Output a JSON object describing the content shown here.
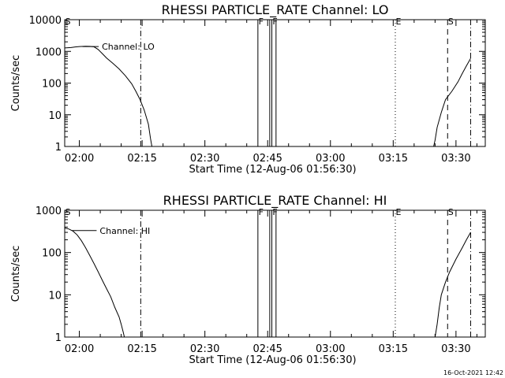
{
  "chart_data": [
    {
      "type": "line",
      "title": "RHESSI PARTICLE_RATE Channel: LO",
      "xlabel": "Start Time (12-Aug-06 01:56:30)",
      "ylabel": "Counts/sec",
      "xlim": [
        "01:56:30",
        "03:37:00"
      ],
      "ylim": [
        1,
        10000
      ],
      "yscale": "log",
      "x_ticks": [
        "02:00",
        "02:15",
        "02:30",
        "02:45",
        "03:00",
        "03:15",
        "03:30"
      ],
      "y_ticks": [
        "1",
        "10",
        "100",
        "1000",
        "10000"
      ],
      "legend_label": "Channel: LO",
      "series": [
        {
          "name": "Channel: LO",
          "segments": [
            [
              [
                "01:56:30",
                1280
              ],
              [
                "01:58:00",
                1320
              ],
              [
                "01:59:00",
                1380
              ],
              [
                "02:00:00",
                1420
              ],
              [
                "02:01:30",
                1450
              ],
              [
                "02:02:30",
                1440
              ],
              [
                "02:03:30",
                1400
              ],
              [
                "02:04:30",
                1150
              ],
              [
                "02:05:30",
                850
              ],
              [
                "02:06:30",
                620
              ],
              [
                "02:08:00",
                420
              ],
              [
                "02:09:30",
                280
              ],
              [
                "02:11:00",
                170
              ],
              [
                "02:12:30",
                95
              ],
              [
                "02:13:30",
                55
              ],
              [
                "02:14:30",
                30
              ],
              [
                "02:15:30",
                14
              ],
              [
                "02:16:30",
                5
              ],
              [
                "02:17:00",
                1.8
              ],
              [
                "02:17:20",
                1
              ]
            ],
            [
              [
                "03:24:40",
                1
              ],
              [
                "03:25:00",
                1.6
              ],
              [
                "03:25:30",
                4
              ],
              [
                "03:26:30",
                12
              ],
              [
                "03:27:30",
                30
              ],
              [
                "03:29:00",
                55
              ],
              [
                "03:30:30",
                110
              ],
              [
                "03:31:30",
                200
              ],
              [
                "03:32:30",
                350
              ],
              [
                "03:33:30",
                600
              ]
            ]
          ]
        }
      ],
      "event_markers": [
        {
          "label": "S",
          "time": "01:56:30",
          "style": "dashed"
        },
        {
          "label": "",
          "time": "02:14:40",
          "style": "dashdot"
        },
        {
          "label": "F",
          "time": "02:42:40",
          "style": "solid"
        },
        {
          "label": "",
          "time": "02:45:30",
          "style": "solid"
        },
        {
          "label": "F",
          "time": "02:46:00",
          "style": "solid"
        },
        {
          "label": "",
          "time": "02:47:00",
          "style": "solid"
        },
        {
          "label": "E",
          "time": "03:15:30",
          "style": "dotted"
        },
        {
          "label": "S",
          "time": "03:28:00",
          "style": "dashed"
        },
        {
          "label": "",
          "time": "03:33:30",
          "style": "dashdot"
        }
      ]
    },
    {
      "type": "line",
      "title": "RHESSI PARTICLE_RATE Channel: HI",
      "xlabel": "Start Time (12-Aug-06 01:56:30)",
      "ylabel": "Counts/sec",
      "xlim": [
        "01:56:30",
        "03:37:00"
      ],
      "ylim": [
        1,
        1000
      ],
      "yscale": "log",
      "x_ticks": [
        "02:00",
        "02:15",
        "02:30",
        "02:45",
        "03:00",
        "03:15",
        "03:30"
      ],
      "y_ticks": [
        "1",
        "10",
        "100",
        "1000"
      ],
      "legend_label": "Channel: HI",
      "series": [
        {
          "name": "Channel: HI",
          "segments": [
            [
              [
                "01:56:30",
                380
              ],
              [
                "01:57:30",
                360
              ],
              [
                "01:58:30",
                320
              ],
              [
                "01:59:30",
                260
              ],
              [
                "02:00:30",
                190
              ],
              [
                "02:01:30",
                130
              ],
              [
                "02:02:30",
                85
              ],
              [
                "02:03:30",
                55
              ],
              [
                "02:04:30",
                35
              ],
              [
                "02:05:30",
                22
              ],
              [
                "02:06:30",
                14
              ],
              [
                "02:07:30",
                9
              ],
              [
                "02:08:30",
                5
              ],
              [
                "02:09:30",
                3
              ],
              [
                "02:10:00",
                2
              ],
              [
                "02:10:30",
                1.3
              ],
              [
                "02:10:45",
                1
              ]
            ],
            [
              [
                "03:25:00",
                1
              ],
              [
                "03:25:30",
                2
              ],
              [
                "03:26:00",
                5
              ],
              [
                "03:26:30",
                10
              ],
              [
                "03:27:30",
                20
              ],
              [
                "03:28:30",
                35
              ],
              [
                "03:30:00",
                70
              ],
              [
                "03:31:30",
                130
              ],
              [
                "03:32:30",
                200
              ],
              [
                "03:33:30",
                300
              ]
            ]
          ]
        }
      ],
      "event_markers": [
        {
          "label": "S",
          "time": "01:56:30",
          "style": "dashed"
        },
        {
          "label": "",
          "time": "02:14:40",
          "style": "dashdot"
        },
        {
          "label": "F",
          "time": "02:42:40",
          "style": "solid"
        },
        {
          "label": "",
          "time": "02:45:30",
          "style": "solid"
        },
        {
          "label": "F",
          "time": "02:46:00",
          "style": "solid"
        },
        {
          "label": "",
          "time": "02:47:00",
          "style": "solid"
        },
        {
          "label": "E",
          "time": "03:15:30",
          "style": "dotted"
        },
        {
          "label": "S",
          "time": "03:28:00",
          "style": "dashed"
        },
        {
          "label": "",
          "time": "03:33:30",
          "style": "dashdot"
        }
      ]
    }
  ],
  "footer": {
    "timestamp": "16-Oct-2021 12:42"
  }
}
